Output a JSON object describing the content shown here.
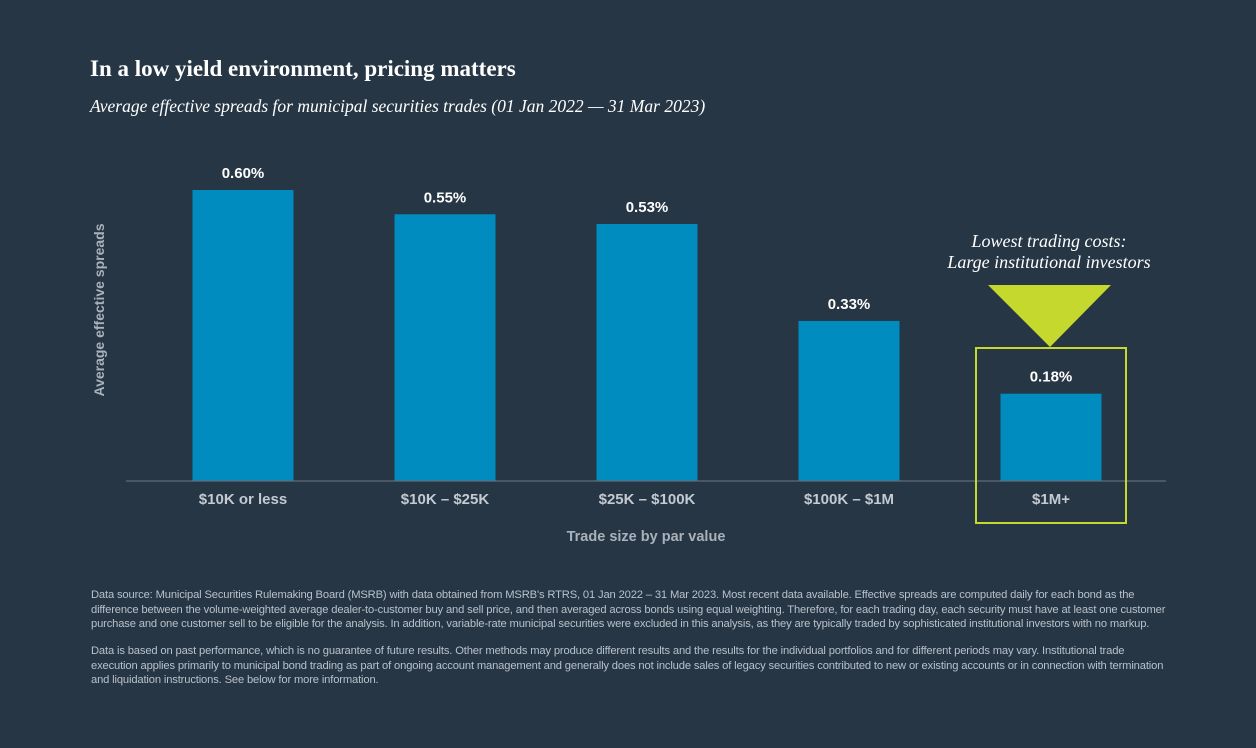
{
  "header": {
    "title": "In a low yield environment, pricing matters",
    "subtitle": "Average effective spreads for municipal securities trades (01 Jan 2022 — 31 Mar 2023)"
  },
  "chart_data": {
    "type": "bar",
    "title": "In a low yield environment, pricing matters",
    "subtitle": "Average effective spreads for municipal securities trades (01 Jan 2022 — 31 Mar 2023)",
    "categories": [
      "$10K or less",
      "$10K – $25K",
      "$25K – $100K",
      "$100K – $1M",
      "$1M+"
    ],
    "values": [
      0.6,
      0.55,
      0.53,
      0.33,
      0.18
    ],
    "data_labels": [
      "0.60%",
      "0.55%",
      "0.53%",
      "0.33%",
      "0.18%"
    ],
    "xlabel": "Trade size by par value",
    "ylabel": "Average effective spreads",
    "ylim": [
      0,
      0.6
    ],
    "grid": false,
    "bar_color": "#008cbf",
    "highlight_color": "#c4d82d",
    "highlight_index": 4,
    "annotation": [
      "Lowest trading costs:",
      "Large institutional investors"
    ]
  },
  "footnotes": {
    "source": "Data source: Municipal Securities Rulemaking Board (MSRB) with data obtained from MSRB's RTRS, 01 Jan 2022 – 31 Mar 2023. Most recent data available. Effective spreads are computed daily for each bond as the difference between the volume-weighted average dealer-to-customer buy and sell price, and then averaged across bonds using equal weighting. Therefore, for each trading day, each security must have at least one customer purchase and one customer sell to be eligible for the analysis. In addition, variable-rate municipal securities were excluded in this analysis, as they are typically traded by sophisticated institutional investors with no markup.",
    "disclaimer": "Data is based on past performance, which is no guarantee of future results. Other methods may produce different results and the results for the individual portfolios and for different periods may vary. Institutional trade execution applies primarily to municipal bond trading as part of ongoing account management and generally does not include sales of legacy securities contributed to new or existing accounts or in connection with termination and liquidation instructions. See below for more information."
  }
}
